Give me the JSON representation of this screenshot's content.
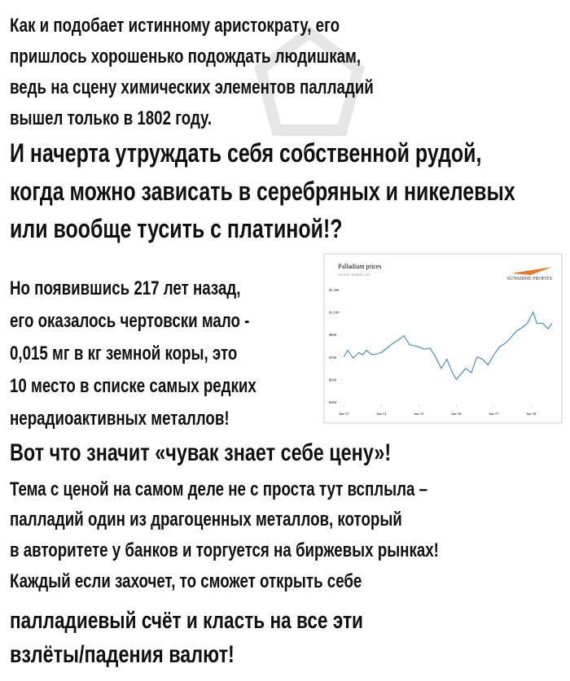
{
  "text_blocks": {
    "intro": [
      "Как и подобает истинному аристократу, его",
      "пришлось хорошенько подождать людишкам,",
      "ведь на сцену химических элементов палладий",
      "вышел только в 1802 году."
    ],
    "question": [
      "И начерта утруждать себя собственной рудой,",
      "когда можно зависать в серебряных и никелевых",
      "или вообще тусить с платиной!?"
    ],
    "rarity": [
      "Но появившись 217 лет назад,",
      "его оказалось чертовски мало -",
      "0,015 мг в кг земной коры, это",
      "10 место в списке самых редких",
      "нерадиоактивных металлов!"
    ],
    "headline": "Вот что значит «чувак знает себе цену»!",
    "body": [
      "Тема с ценой на самом деле не с проста тут всплыла –",
      "палладий один из драгоценных металлов, который",
      "в авторитете у банков и торгуется на биржевых рынках!",
      "Каждый если захочет, то сможет открыть себе"
    ],
    "closing": [
      "палладиевый счёт и класть на все эти",
      "взлёты/падения валют!"
    ]
  },
  "chart_data": {
    "type": "line",
    "title": "Palladium prices",
    "subtitle": "Source: quandl.com",
    "brand": "SUNSHINE PROFITS",
    "x": [
      2013.0,
      2013.1,
      2013.25,
      2013.4,
      2013.5,
      2013.6,
      2013.75,
      2013.9,
      2014.0,
      2014.15,
      2014.3,
      2014.45,
      2014.6,
      2014.75,
      2014.9,
      2015.0,
      2015.15,
      2015.3,
      2015.45,
      2015.6,
      2015.75,
      2015.9,
      2016.0,
      2016.1,
      2016.25,
      2016.4,
      2016.55,
      2016.7,
      2016.85,
      2017.0,
      2017.15,
      2017.3,
      2017.45,
      2017.6,
      2017.75,
      2017.9,
      2018.05,
      2018.15,
      2018.3,
      2018.45,
      2018.55
    ],
    "series": [
      {
        "color": "#2b7bb9",
        "values": [
          700,
          760,
          690,
          740,
          720,
          760,
          720,
          730,
          740,
          780,
          820,
          850,
          890,
          810,
          800,
          790,
          770,
          780,
          700,
          600,
          680,
          560,
          500,
          540,
          600,
          560,
          700,
          680,
          630,
          720,
          790,
          820,
          870,
          930,
          960,
          1000,
          1100,
          1000,
          1000,
          950,
          1000
        ]
      }
    ],
    "xlim": [
      2012.95,
      2018.6
    ],
    "xticks": [
      {
        "value": 2013,
        "label": "Jan-13"
      },
      {
        "value": 2014,
        "label": "Jan-14"
      },
      {
        "value": 2015,
        "label": "Jan-15"
      },
      {
        "value": 2016,
        "label": "Jan-16"
      },
      {
        "value": 2017,
        "label": "Jan-17"
      },
      {
        "value": 2018,
        "label": "Jan-18"
      }
    ],
    "ylim": [
      280,
      1320
    ],
    "yticks": [
      {
        "value": 300,
        "label": "$300"
      },
      {
        "value": 500,
        "label": "$500"
      },
      {
        "value": 700,
        "label": "$700"
      },
      {
        "value": 900,
        "label": "$900"
      },
      {
        "value": 1100,
        "label": "$1,100"
      },
      {
        "value": 1300,
        "label": "$1,300"
      }
    ],
    "grid": false
  }
}
